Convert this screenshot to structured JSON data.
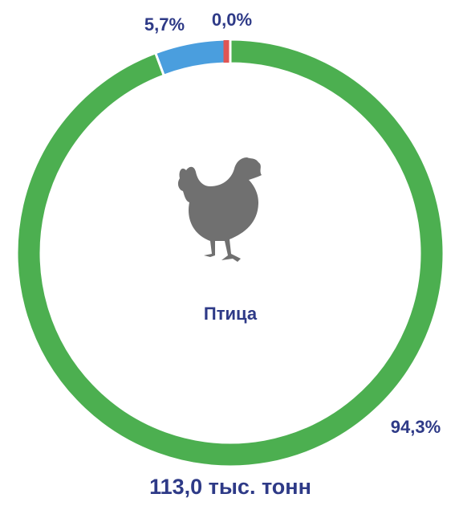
{
  "chart_data": {
    "type": "donut",
    "values": [
      94.3,
      5.7,
      0.0
    ],
    "value_labels": [
      "94,3%",
      "5,7%",
      "0,0%"
    ],
    "colors": [
      "#4caf50",
      "#4a9ede",
      "#e05555"
    ],
    "center_label": "Птица",
    "total_label": "113,0 тыс. тонн"
  }
}
